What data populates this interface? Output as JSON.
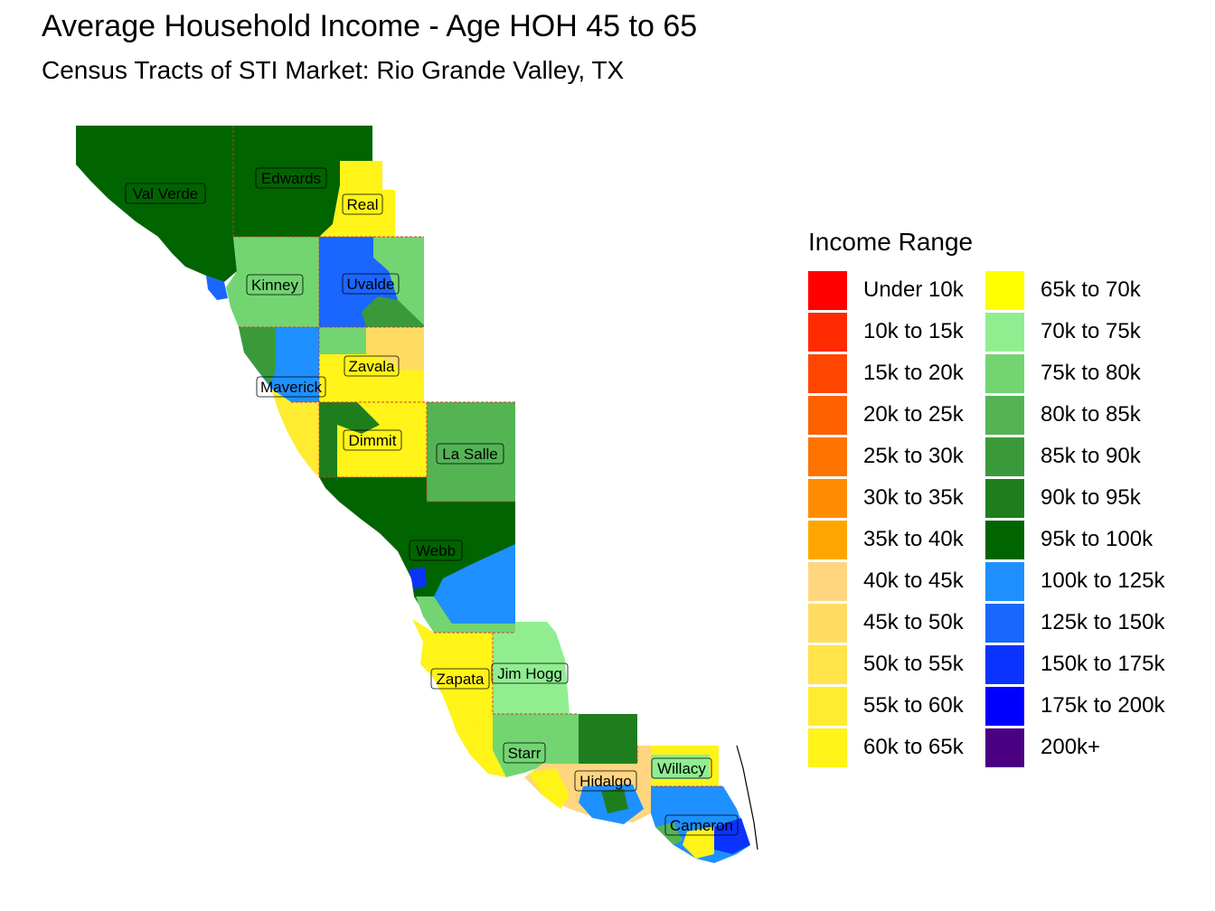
{
  "title": "Average Household Income - Age HOH 45 to 65",
  "subtitle": "Census Tracts of STI Market: Rio Grande Valley, TX",
  "legend": {
    "title": "Income Range",
    "items": [
      {
        "label": "Under 10k",
        "color": "#ff0000"
      },
      {
        "label": "10k to 15k",
        "color": "#ff2a00"
      },
      {
        "label": "15k to 20k",
        "color": "#ff4500"
      },
      {
        "label": "20k to 25k",
        "color": "#ff6000"
      },
      {
        "label": "25k to 30k",
        "color": "#ff7400"
      },
      {
        "label": "30k to 35k",
        "color": "#ff8c00"
      },
      {
        "label": "35k to 40k",
        "color": "#ffa500"
      },
      {
        "label": "40k to 45k",
        "color": "#ffd580"
      },
      {
        "label": "45k to 50k",
        "color": "#ffdc60"
      },
      {
        "label": "50k to 55k",
        "color": "#ffe44a"
      },
      {
        "label": "55k to 60k",
        "color": "#ffec30"
      },
      {
        "label": "60k to 65k",
        "color": "#fff318"
      },
      {
        "label": "65k to 70k",
        "color": "#ffff00"
      },
      {
        "label": "70k to 75k",
        "color": "#90ee90"
      },
      {
        "label": "75k to 80k",
        "color": "#72d572"
      },
      {
        "label": "80k to 85k",
        "color": "#54b454"
      },
      {
        "label": "85k to 90k",
        "color": "#3a9a3a"
      },
      {
        "label": "90k to 95k",
        "color": "#1e7e1e"
      },
      {
        "label": "95k to 100k",
        "color": "#006400"
      },
      {
        "label": "100k to 125k",
        "color": "#1e90ff"
      },
      {
        "label": "125k to 150k",
        "color": "#1a66ff"
      },
      {
        "label": "150k to 175k",
        "color": "#0a33ff"
      },
      {
        "label": "175k to 200k",
        "color": "#0000ff"
      },
      {
        "label": "200k+",
        "color": "#4b0082"
      }
    ]
  },
  "counties": [
    {
      "name": "Val Verde",
      "range": "95k to 100k"
    },
    {
      "name": "Edwards",
      "range": "95k to 100k"
    },
    {
      "name": "Real",
      "range": "60k to 65k"
    },
    {
      "name": "Kinney",
      "range": "75k to 80k"
    },
    {
      "name": "Uvalde",
      "range": "125k to 150k"
    },
    {
      "name": "Zavala",
      "range": "60k to 65k"
    },
    {
      "name": "Maverick",
      "range": "100k to 125k"
    },
    {
      "name": "Dimmit",
      "range": "60k to 65k"
    },
    {
      "name": "La Salle",
      "range": "80k to 85k"
    },
    {
      "name": "Webb",
      "range": "95k to 100k"
    },
    {
      "name": "Zapata",
      "range": "60k to 65k"
    },
    {
      "name": "Jim Hogg",
      "range": "70k to 75k"
    },
    {
      "name": "Starr",
      "range": "75k to 80k"
    },
    {
      "name": "Hidalgo",
      "range": "45k to 50k"
    },
    {
      "name": "Willacy",
      "range": "60k to 65k"
    },
    {
      "name": "Cameron",
      "range": "125k to 150k"
    }
  ]
}
